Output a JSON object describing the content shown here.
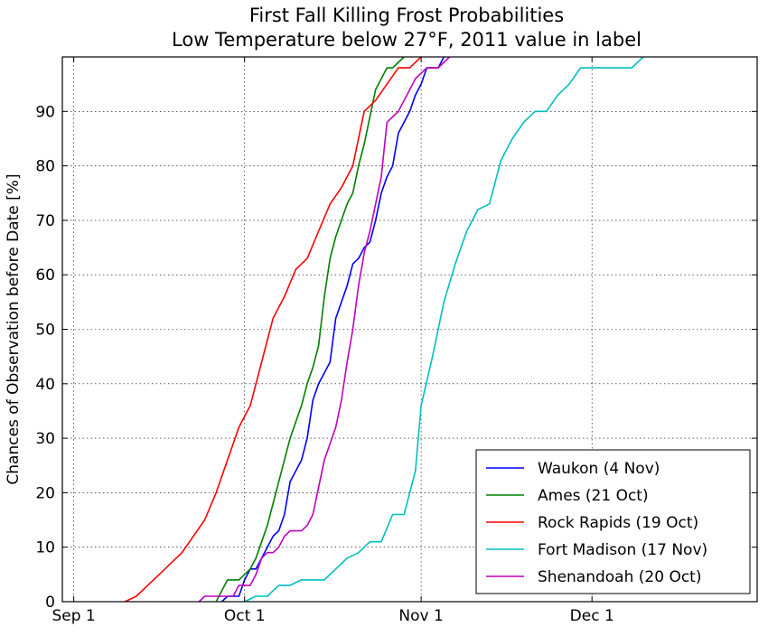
{
  "chart_data": {
    "type": "line",
    "title": "First Fall Killing Frost Probabilities",
    "subtitle": "Low Temperature below 27$^\\circ$F, 2011 value in label",
    "subtitle_display": "Low Temperature below 27°F, 2011 value in label",
    "xlabel": "",
    "ylabel": "Chances of Observation before Date [%]",
    "x_axis_type": "date",
    "xlim": [
      "Aug 30",
      "Dec 30"
    ],
    "ylim": [
      0,
      100
    ],
    "x_ticks": [
      {
        "label": "Sep 1",
        "date": "Sep 1"
      },
      {
        "label": "Oct 1",
        "date": "Oct 1"
      },
      {
        "label": "Nov 1",
        "date": "Nov 1"
      },
      {
        "label": "Dec 1",
        "date": "Dec 1"
      }
    ],
    "y_ticks": [
      0,
      10,
      20,
      30,
      40,
      50,
      60,
      70,
      80,
      90
    ],
    "grid": true,
    "legend_placement": "lower-right",
    "series": [
      {
        "name": "Waukon (4 Nov)",
        "color": "#0000ff",
        "points": [
          [
            "Sep 27",
            0
          ],
          [
            "Sep 28",
            1
          ],
          [
            "Sep 29",
            1
          ],
          [
            "Sep 30",
            1
          ],
          [
            "Oct 1",
            4
          ],
          [
            "Oct 2",
            6
          ],
          [
            "Oct 3",
            6
          ],
          [
            "Oct 4",
            8
          ],
          [
            "Oct 5",
            10
          ],
          [
            "Oct 6",
            12
          ],
          [
            "Oct 7",
            13
          ],
          [
            "Oct 8",
            16
          ],
          [
            "Oct 9",
            22
          ],
          [
            "Oct 10",
            24
          ],
          [
            "Oct 11",
            26
          ],
          [
            "Oct 12",
            30
          ],
          [
            "Oct 13",
            37
          ],
          [
            "Oct 14",
            40
          ],
          [
            "Oct 15",
            42
          ],
          [
            "Oct 16",
            44
          ],
          [
            "Oct 17",
            52
          ],
          [
            "Oct 18",
            55
          ],
          [
            "Oct 19",
            58
          ],
          [
            "Oct 20",
            62
          ],
          [
            "Oct 21",
            63
          ],
          [
            "Oct 22",
            65
          ],
          [
            "Oct 23",
            66
          ],
          [
            "Oct 24",
            70
          ],
          [
            "Oct 25",
            75
          ],
          [
            "Oct 26",
            78
          ],
          [
            "Oct 27",
            80
          ],
          [
            "Oct 28",
            86
          ],
          [
            "Oct 29",
            88
          ],
          [
            "Oct 30",
            90
          ],
          [
            "Oct 31",
            93
          ],
          [
            "Nov 1",
            95
          ],
          [
            "Nov 2",
            98
          ],
          [
            "Nov 3",
            98
          ],
          [
            "Nov 4",
            98
          ],
          [
            "Nov 5",
            100
          ]
        ]
      },
      {
        "name": "Ames (21 Oct)",
        "color": "#008000",
        "points": [
          [
            "Sep 26",
            0
          ],
          [
            "Sep 27",
            2
          ],
          [
            "Sep 28",
            4
          ],
          [
            "Sep 29",
            4
          ],
          [
            "Sep 30",
            4
          ],
          [
            "Oct 1",
            5
          ],
          [
            "Oct 2",
            6
          ],
          [
            "Oct 3",
            8
          ],
          [
            "Oct 4",
            11
          ],
          [
            "Oct 5",
            14
          ],
          [
            "Oct 6",
            18
          ],
          [
            "Oct 7",
            22
          ],
          [
            "Oct 8",
            26
          ],
          [
            "Oct 9",
            30
          ],
          [
            "Oct 10",
            33
          ],
          [
            "Oct 11",
            36
          ],
          [
            "Oct 12",
            40
          ],
          [
            "Oct 13",
            43
          ],
          [
            "Oct 14",
            47
          ],
          [
            "Oct 15",
            56
          ],
          [
            "Oct 16",
            63
          ],
          [
            "Oct 17",
            67
          ],
          [
            "Oct 18",
            70
          ],
          [
            "Oct 19",
            73
          ],
          [
            "Oct 20",
            75
          ],
          [
            "Oct 21",
            80
          ],
          [
            "Oct 22",
            84
          ],
          [
            "Oct 23",
            89
          ],
          [
            "Oct 24",
            94
          ],
          [
            "Oct 25",
            96
          ],
          [
            "Oct 26",
            98
          ],
          [
            "Oct 27",
            98
          ],
          [
            "Oct 28",
            99
          ],
          [
            "Oct 29",
            100
          ]
        ]
      },
      {
        "name": "Rock Rapids (19 Oct)",
        "color": "#ff0000",
        "points": [
          [
            "Sep 10",
            0
          ],
          [
            "Sep 12",
            1
          ],
          [
            "Sep 14",
            3
          ],
          [
            "Sep 16",
            5
          ],
          [
            "Sep 18",
            7
          ],
          [
            "Sep 20",
            9
          ],
          [
            "Sep 22",
            12
          ],
          [
            "Sep 24",
            15
          ],
          [
            "Sep 26",
            20
          ],
          [
            "Sep 28",
            26
          ],
          [
            "Sep 30",
            32
          ],
          [
            "Oct 2",
            36
          ],
          [
            "Oct 4",
            44
          ],
          [
            "Oct 6",
            52
          ],
          [
            "Oct 8",
            56
          ],
          [
            "Oct 10",
            61
          ],
          [
            "Oct 12",
            63
          ],
          [
            "Oct 14",
            68
          ],
          [
            "Oct 16",
            73
          ],
          [
            "Oct 18",
            76
          ],
          [
            "Oct 20",
            80
          ],
          [
            "Oct 22",
            90
          ],
          [
            "Oct 24",
            92
          ],
          [
            "Oct 26",
            95
          ],
          [
            "Oct 28",
            98
          ],
          [
            "Oct 30",
            98
          ],
          [
            "Nov 1",
            100
          ]
        ]
      },
      {
        "name": "Fort Madison (17 Nov)",
        "color": "#00bfbf",
        "points": [
          [
            "Oct 1",
            0
          ],
          [
            "Oct 3",
            1
          ],
          [
            "Oct 5",
            1
          ],
          [
            "Oct 7",
            3
          ],
          [
            "Oct 9",
            3
          ],
          [
            "Oct 11",
            4
          ],
          [
            "Oct 13",
            4
          ],
          [
            "Oct 15",
            4
          ],
          [
            "Oct 17",
            6
          ],
          [
            "Oct 19",
            8
          ],
          [
            "Oct 21",
            9
          ],
          [
            "Oct 23",
            11
          ],
          [
            "Oct 25",
            11
          ],
          [
            "Oct 27",
            16
          ],
          [
            "Oct 29",
            16
          ],
          [
            "Oct 30",
            20
          ],
          [
            "Oct 31",
            24
          ],
          [
            "Nov 1",
            36
          ],
          [
            "Nov 3",
            45
          ],
          [
            "Nov 5",
            55
          ],
          [
            "Nov 7",
            62
          ],
          [
            "Nov 9",
            68
          ],
          [
            "Nov 11",
            72
          ],
          [
            "Nov 13",
            73
          ],
          [
            "Nov 15",
            81
          ],
          [
            "Nov 17",
            85
          ],
          [
            "Nov 19",
            88
          ],
          [
            "Nov 21",
            90
          ],
          [
            "Nov 23",
            90
          ],
          [
            "Nov 25",
            93
          ],
          [
            "Nov 27",
            95
          ],
          [
            "Nov 29",
            98
          ],
          [
            "Dec 1",
            98
          ],
          [
            "Dec 5",
            98
          ],
          [
            "Dec 8",
            98
          ],
          [
            "Dec 10",
            100
          ]
        ]
      },
      {
        "name": "Shenandoah (20 Oct)",
        "color": "#bf00bf",
        "points": [
          [
            "Sep 23",
            0
          ],
          [
            "Sep 24",
            1
          ],
          [
            "Sep 25",
            1
          ],
          [
            "Sep 26",
            1
          ],
          [
            "Sep 27",
            1
          ],
          [
            "Sep 28",
            1
          ],
          [
            "Sep 29",
            1
          ],
          [
            "Sep 30",
            3
          ],
          [
            "Oct 1",
            3
          ],
          [
            "Oct 2",
            3
          ],
          [
            "Oct 3",
            5
          ],
          [
            "Oct 4",
            8
          ],
          [
            "Oct 5",
            9
          ],
          [
            "Oct 6",
            9
          ],
          [
            "Oct 7",
            10
          ],
          [
            "Oct 8",
            12
          ],
          [
            "Oct 9",
            13
          ],
          [
            "Oct 10",
            13
          ],
          [
            "Oct 11",
            13
          ],
          [
            "Oct 12",
            14
          ],
          [
            "Oct 13",
            16
          ],
          [
            "Oct 14",
            21
          ],
          [
            "Oct 15",
            26
          ],
          [
            "Oct 16",
            29
          ],
          [
            "Oct 17",
            32
          ],
          [
            "Oct 18",
            37
          ],
          [
            "Oct 19",
            44
          ],
          [
            "Oct 20",
            50
          ],
          [
            "Oct 21",
            58
          ],
          [
            "Oct 22",
            64
          ],
          [
            "Oct 23",
            68
          ],
          [
            "Oct 24",
            73
          ],
          [
            "Oct 25",
            78
          ],
          [
            "Oct 26",
            88
          ],
          [
            "Oct 27",
            89
          ],
          [
            "Oct 28",
            90
          ],
          [
            "Oct 29",
            92
          ],
          [
            "Oct 30",
            94
          ],
          [
            "Oct 31",
            96
          ],
          [
            "Nov 1",
            97
          ],
          [
            "Nov 2",
            98
          ],
          [
            "Nov 3",
            98
          ],
          [
            "Nov 4",
            98
          ],
          [
            "Nov 5",
            99
          ],
          [
            "Nov 6",
            100
          ]
        ]
      }
    ]
  }
}
